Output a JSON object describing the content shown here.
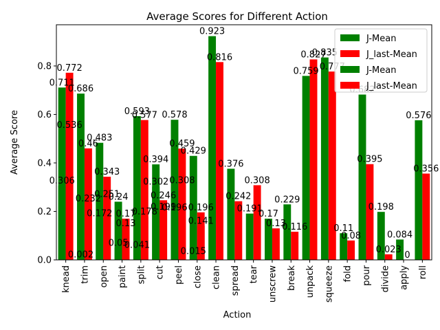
{
  "chart_data": {
    "type": "bar",
    "title": "Average Scores for Different Action",
    "xlabel": "Action",
    "ylabel": "Average Score",
    "ylim": [
      0,
      0.97
    ],
    "yticks": [
      "0.0",
      "0.2",
      "0.4",
      "0.6",
      "0.8"
    ],
    "grid": false,
    "legend_position": "top-right",
    "categories": [
      "knead",
      "trim",
      "open",
      "paint",
      "split",
      "cut",
      "peel",
      "close",
      "clean",
      "spread",
      "tear",
      "unscrew",
      "break",
      "unpack",
      "squeeze",
      "fold",
      "pour",
      "divide",
      "apply",
      "roll"
    ],
    "series": [
      {
        "name": "J-Mean",
        "color": "#008000",
        "values": [
          0.711,
          0.686,
          0.483,
          0.24,
          0.593,
          0.394,
          0.578,
          0.429,
          0.923,
          0.376,
          0.191,
          0.17,
          0.229,
          0.759,
          0.835,
          0.11,
          0.682,
          0.198,
          0.084,
          0.576
        ]
      },
      {
        "name": "J_last-Mean",
        "color": "#ff0000",
        "values": [
          0.772,
          0.46,
          0.251,
          0.13,
          0.577,
          0.246,
          0.459,
          0.141,
          0.816,
          0.242,
          0.308,
          0.13,
          0.116,
          0.827,
          0.777,
          0.08,
          0.395,
          0.023,
          0.0,
          0.356
        ]
      },
      {
        "name": "J-Mean",
        "color": "#008000",
        "values": [
          0.306,
          0.002,
          0.172,
          0.05,
          0.041,
          0.302,
          0.196,
          0.015,
          null,
          null,
          null,
          null,
          null,
          null,
          null,
          null,
          null,
          null,
          null,
          null
        ]
      },
      {
        "name": "J_last-Mean",
        "color": "#ff0000",
        "values": [
          0.536,
          0.232,
          0.343,
          0.17,
          0.178,
          0.199,
          0.308,
          0.196,
          null,
          null,
          null,
          null,
          null,
          null,
          null,
          null,
          null,
          null,
          null,
          null
        ]
      }
    ]
  }
}
